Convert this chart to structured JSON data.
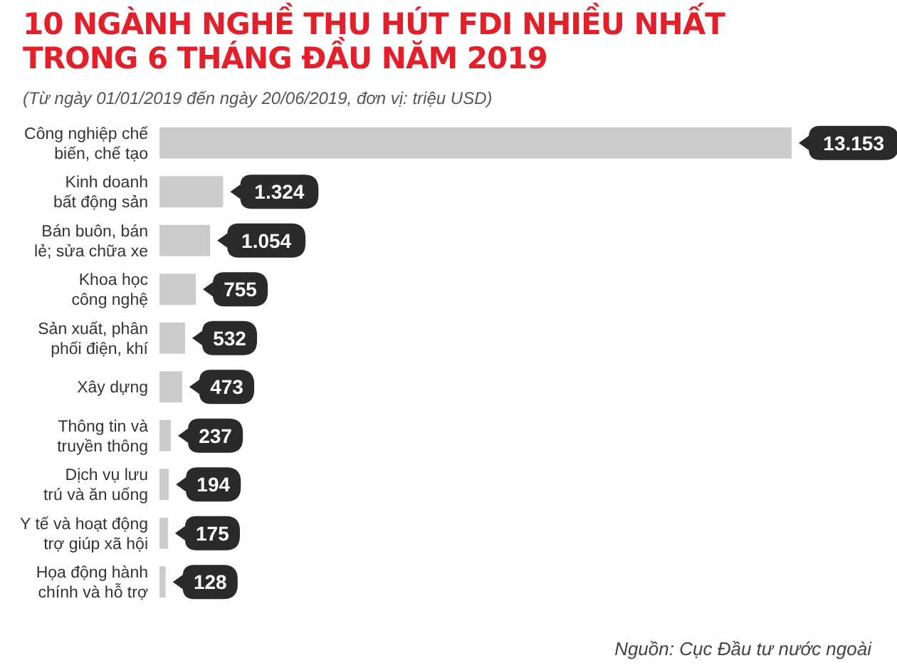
{
  "chart_data": {
    "type": "bar",
    "orientation": "horizontal",
    "relative": false,
    "title": "10 NGÀNH NGHỀ THU HÚT FDI NHIỀU NHẤT\nTRONG 6 THÁNG ĐẦU NĂM 2019",
    "subtitle": "(Từ ngày 01/01/2019 đến ngày 20/06/2019, đơn vị: triệu USD)",
    "categories": [
      "Công nghiệp chế biến, chế tạo",
      "Kinh doanh bất động sản",
      "Bán buôn, bán lẻ; sửa chữa xe",
      "Khoa học công nghệ",
      "Sản xuất, phân phối điện, khí",
      "Xây dựng",
      "Thông tin và truyền thông",
      "Dịch vụ lưu trú và ăn uống",
      "Y tế và hoạt động trợ giúp xã hội",
      "Họa động hành chính và hỗ trợ"
    ],
    "values": [
      13153,
      1324,
      1054,
      755,
      532,
      473,
      237,
      194,
      175,
      128
    ],
    "value_labels": [
      "13.153",
      "1.324",
      "1.054",
      "755",
      "532",
      "473",
      "237",
      "194",
      "175",
      "128"
    ],
    "color": "#cbcbcb",
    "annotations": [
      "Nguồn: Cục Đầu tư nước ngoài"
    ]
  }
}
